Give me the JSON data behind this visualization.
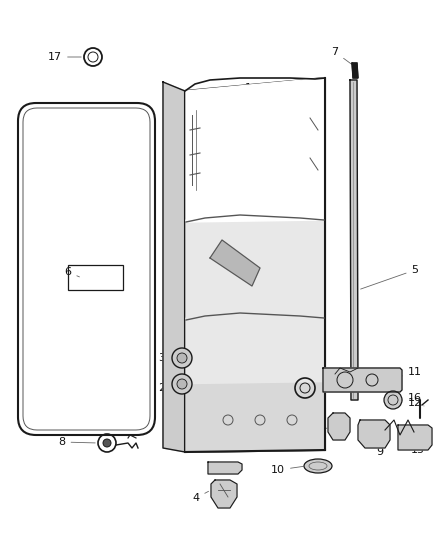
{
  "background_color": "#ffffff",
  "figure_width": 4.38,
  "figure_height": 5.33,
  "dpi": 100
}
